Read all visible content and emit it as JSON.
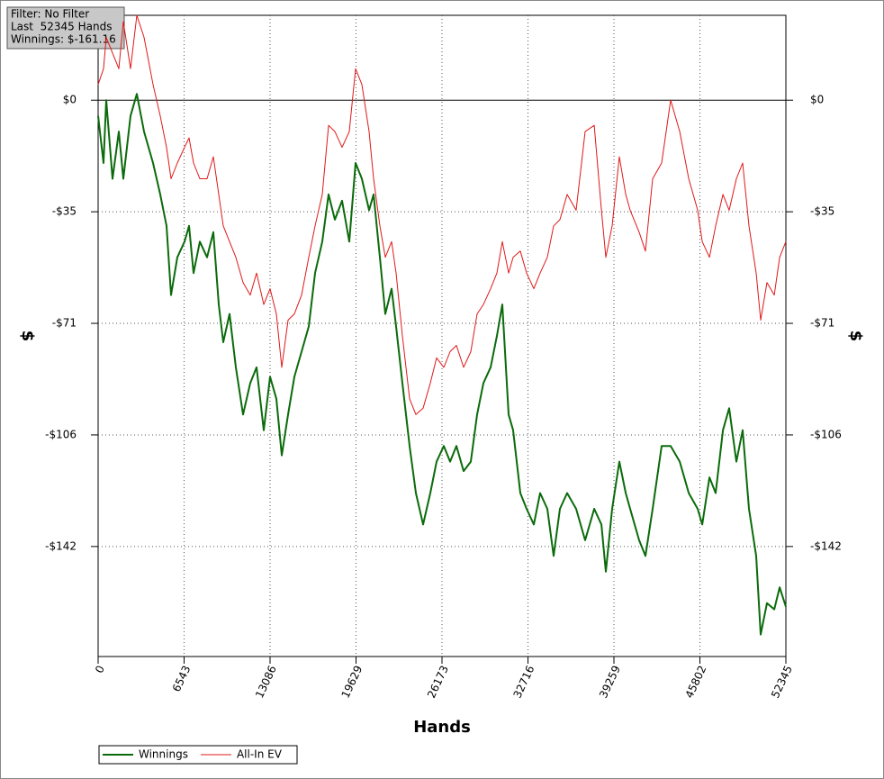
{
  "info": {
    "lines": [
      "Filter: No Filter",
      "Last  52345 Hands",
      "Winnings: $-161.16"
    ]
  },
  "chart_data": {
    "type": "line",
    "x_label": "Hands",
    "y_label": "$",
    "x": [
      0,
      411,
      617,
      1096,
      1576,
      1919,
      2467,
      2946,
      3494,
      4180,
      4728,
      5207,
      5550,
      6030,
      6578,
      6920,
      7263,
      7743,
      8291,
      8771,
      9182,
      9525,
      10004,
      10484,
      11032,
      11580,
      12060,
      12608,
      13087,
      13567,
      13978,
      14458,
      14937,
      15485,
      16034,
      16513,
      17061,
      17541,
      18021,
      18569,
      19117,
      19596,
      20076,
      20624,
      20967,
      21446,
      21857,
      22337,
      22680,
      23160,
      23708,
      24187,
      24735,
      25283,
      25763,
      26311,
      26791,
      27271,
      27819,
      28367,
      28846,
      29326,
      29874,
      30354,
      30765,
      31245,
      31587,
      32136,
      32615,
      33164,
      33643,
      34191,
      34671,
      35151,
      35699,
      36384,
      37069,
      37755,
      38303,
      38645,
      39125,
      39673,
      40153,
      40495,
      41180,
      41660,
      42208,
      42893,
      43578,
      44264,
      44949,
      45634,
      45977,
      46525,
      47004,
      47553,
      48032,
      48580,
      49059,
      49539,
      50087,
      50430,
      50909,
      51458,
      51869,
      52345
    ],
    "series": [
      {
        "name": "Winnings",
        "color": "#0b6b0b",
        "width": 2,
        "values": [
          -5,
          -20,
          0,
          -25,
          -10,
          -25,
          -5,
          2,
          -10,
          -20,
          -30,
          -40,
          -62,
          -50,
          -45,
          -40,
          -55,
          -45,
          -50,
          -42,
          -65,
          -77,
          -68,
          -85,
          -100,
          -90,
          -85,
          -105,
          -88,
          -95,
          -113,
          -100,
          -88,
          -80,
          -72,
          -55,
          -45,
          -30,
          -38,
          -32,
          -45,
          -20,
          -25,
          -35,
          -30,
          -50,
          -68,
          -60,
          -72,
          -90,
          -110,
          -125,
          -135,
          -125,
          -115,
          -110,
          -115,
          -110,
          -118,
          -115,
          -100,
          -90,
          -85,
          -75,
          -65,
          -100,
          -105,
          -125,
          -130,
          -135,
          -125,
          -130,
          -145,
          -130,
          -125,
          -130,
          -140,
          -130,
          -135,
          -150,
          -130,
          -115,
          -125,
          -130,
          -140,
          -145,
          -130,
          -110,
          -110,
          -115,
          -125,
          -130,
          -135,
          -120,
          -125,
          -105,
          -98,
          -115,
          -105,
          -130,
          -145,
          -170,
          -160,
          -162,
          -155,
          -161.16
        ]
      },
      {
        "name": "All-In EV",
        "color": "#e01818",
        "width": 1,
        "values": [
          5,
          10,
          20,
          15,
          10,
          25,
          10,
          27,
          20,
          5,
          -5,
          -15,
          -25,
          -20,
          -15,
          -12,
          -20,
          -25,
          -25,
          -18,
          -30,
          -40,
          -45,
          -50,
          -58,
          -62,
          -55,
          -65,
          -60,
          -68,
          -85,
          -70,
          -68,
          -62,
          -50,
          -40,
          -30,
          -8,
          -10,
          -15,
          -10,
          10,
          5,
          -10,
          -25,
          -40,
          -50,
          -45,
          -55,
          -75,
          -95,
          -100,
          -98,
          -90,
          -82,
          -85,
          -80,
          -78,
          -85,
          -80,
          -68,
          -65,
          -60,
          -55,
          -45,
          -55,
          -50,
          -48,
          -55,
          -60,
          -55,
          -50,
          -40,
          -38,
          -30,
          -35,
          -10,
          -8,
          -35,
          -50,
          -40,
          -18,
          -30,
          -35,
          -42,
          -48,
          -25,
          -20,
          0,
          -10,
          -25,
          -35,
          -45,
          -50,
          -40,
          -30,
          -35,
          -25,
          -20,
          -40,
          -55,
          -70,
          -58,
          -62,
          -50,
          -45
        ]
      }
    ],
    "xlim": [
      0,
      52345
    ],
    "xticks": [
      0,
      6543,
      13086,
      19629,
      26173,
      32716,
      39259,
      45802,
      52345
    ],
    "ylim": [
      -177,
      27
    ],
    "yticks": [
      {
        "value": 0,
        "label": "$0"
      },
      {
        "value": -35.5,
        "label": "-$35"
      },
      {
        "value": -71,
        "label": "-$71"
      },
      {
        "value": -106.5,
        "label": "-$106"
      },
      {
        "value": -142,
        "label": "-$142"
      }
    ],
    "grid": true,
    "zero_line": true,
    "right_axis": true,
    "legend": "bottom-left"
  }
}
